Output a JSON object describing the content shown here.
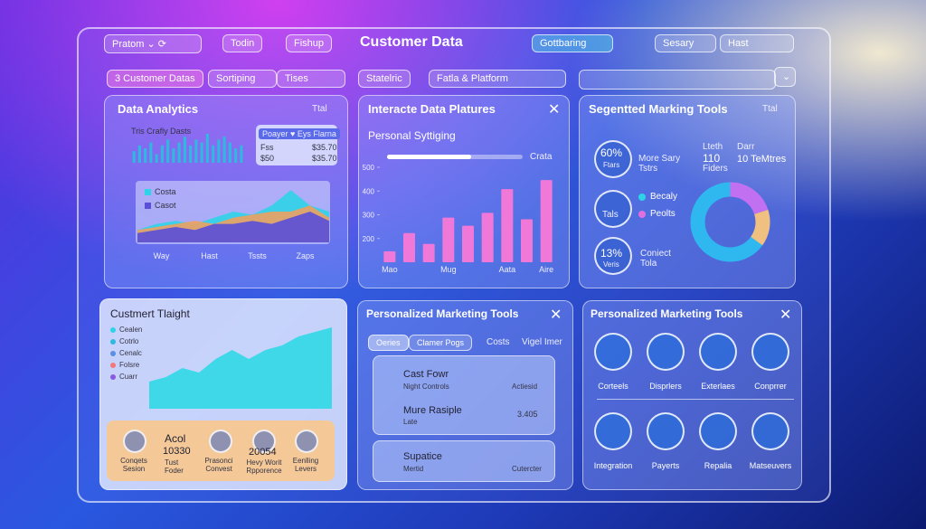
{
  "nav": {
    "brand": "Pratom",
    "tabs": [
      "Todin",
      "Fishup"
    ],
    "title": "Customer Data",
    "button": "Gottbaring",
    "search": "Sesary",
    "select": "Hast"
  },
  "filters": [
    "3 Customer Datas",
    "Sortiping",
    "Tises",
    "Statelric",
    "Fatla & Platform"
  ],
  "analytics": {
    "title": "Data Analytics",
    "action": "Ttal",
    "mini_title": "Tris Crafly Dasts",
    "mini_bars": {
      "color": "#2fb8e0",
      "ylim": [
        0,
        10
      ],
      "values": [
        4,
        6,
        5,
        7,
        3,
        6,
        8,
        5,
        7,
        9,
        6,
        8,
        7,
        10,
        6,
        8,
        9,
        7,
        5,
        6
      ]
    },
    "legend_box": {
      "header": "Poayer ♥ Eys Flarna",
      "rows": [
        [
          "Fss",
          "$35.70"
        ],
        [
          "$50",
          "$35.70"
        ]
      ]
    },
    "area": {
      "legend": [
        "Costa",
        "Casot"
      ],
      "legend_colors": [
        "#2fd3e8",
        "#5a4fd8"
      ],
      "ylim": [
        0,
        10
      ],
      "series": [
        {
          "color": "#2fd3e8",
          "values": [
            2,
            3,
            3.5,
            3,
            4,
            5,
            4.5,
            6,
            8.5,
            6,
            5
          ]
        },
        {
          "color": "#f0a060",
          "values": [
            2,
            2.5,
            3,
            3.5,
            3,
            4,
            4.5,
            5,
            5,
            6,
            4
          ]
        },
        {
          "color": "#5a4fd8",
          "values": [
            1.5,
            2,
            2.5,
            2,
            3,
            3,
            3.5,
            3,
            4,
            5,
            3.5
          ]
        }
      ],
      "x_labels": [
        "Way",
        "Hast",
        "Tssts",
        "Zaps"
      ]
    }
  },
  "platforms": {
    "title": "Interacte Data Platures",
    "subtitle": "Personal Syttiging",
    "slider_label": "Crata",
    "bars": {
      "color": "#f078d8",
      "ylim": [
        100,
        500
      ],
      "yticks": [
        200,
        300,
        400,
        500
      ],
      "categories": [
        "Mao",
        null,
        null,
        "Mug",
        null,
        null,
        "Aata",
        null,
        "Aire"
      ],
      "values": [
        146,
        223,
        177,
        288,
        254,
        308,
        408,
        281,
        446
      ]
    }
  },
  "segmented": {
    "title": "Segentted Marking Tools",
    "action": "Ttal",
    "stats": [
      {
        "value": "60%",
        "label": "Ftars"
      },
      {
        "value": "13%",
        "label": "Veris"
      }
    ],
    "texts": [
      "More Sary Tstrs",
      "Tals",
      "Coniect Tola"
    ],
    "counters": [
      {
        "head": "Lteth",
        "value": "110",
        "label": "Fiders"
      },
      {
        "head": "Darr",
        "value": "10 TeMtres"
      }
    ],
    "legend": [
      "Becaly",
      "Peolts"
    ],
    "legend_colors": [
      "#2fd3e8",
      "#e070e0"
    ],
    "donut": {
      "values": [
        20,
        15,
        65
      ],
      "colors": [
        "#c070f0",
        "#f0c080",
        "#2fb8f0"
      ]
    }
  },
  "insight": {
    "title": "Custmert Tlaight",
    "legend": [
      "Cealen",
      "Cotrlo",
      "Cenalc",
      "Folsre",
      "Cuarr"
    ],
    "legend_colors": [
      "#2fd3e8",
      "#2fb8e0",
      "#5a8fe8",
      "#f07878",
      "#8a5ae0"
    ],
    "area": {
      "color": "#3fd8e8",
      "ylim": [
        0,
        10
      ],
      "values": [
        3,
        3.5,
        4.5,
        4,
        5.5,
        6.5,
        5.5,
        6.5,
        7,
        8,
        8.5,
        9
      ]
    },
    "cards": [
      {
        "label": "Conqets Sesion"
      },
      {
        "head": "Acol",
        "value": "10330",
        "label": "Tust Foder"
      },
      {
        "label": "Prasonci Convest"
      },
      {
        "value": "20054",
        "label": "Hevy Worit Rpporence"
      },
      {
        "label": "Eenlling Levers"
      }
    ]
  },
  "marketing": {
    "title": "Personalized Marketing Tools",
    "tabs": [
      "Oeries",
      "Clamer Pogs",
      "Costs",
      "Vigel Imer"
    ],
    "items": [
      {
        "title": "Cast Fowr",
        "sub": "Night Controls",
        "side": "Actiesid"
      },
      {
        "title": "Mure Rasiple",
        "sub": "Late",
        "side": "3.405"
      },
      {
        "title": "Supatice",
        "sub": "Mertid",
        "side": "Cutercter"
      }
    ]
  },
  "tools": {
    "title": "Personalized Marketing Tools",
    "icons": [
      "Corteels",
      "Disprlers",
      "Exterlaes",
      "Conprrer",
      "Integration",
      "Payerts",
      "Repalia",
      "Matseuvers"
    ]
  }
}
